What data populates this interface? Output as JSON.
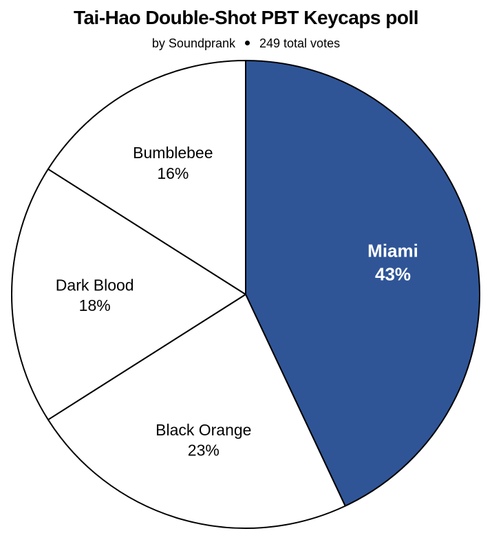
{
  "chart_data": {
    "type": "pie",
    "title": "Tai-Hao Double-Shot PBT Keycaps poll",
    "subtitle": {
      "author": "by Soundprank",
      "votes": "249 total votes"
    },
    "slices": [
      {
        "label": "Miami",
        "value": 43,
        "display": "43%",
        "color": "#2f5597",
        "text_color": "#ffffff"
      },
      {
        "label": "Black Orange",
        "value": 23,
        "display": "23%",
        "color": "#ffffff",
        "text_color": "#000000"
      },
      {
        "label": "Dark Blood",
        "value": 18,
        "display": "18%",
        "color": "#ffffff",
        "text_color": "#000000"
      },
      {
        "label": "Bumblebee",
        "value": 16,
        "display": "16%",
        "color": "#ffffff",
        "text_color": "#000000"
      }
    ],
    "start": "12 o'clock",
    "direction": "clockwise",
    "stroke_color": "#000000",
    "legend": "none"
  }
}
